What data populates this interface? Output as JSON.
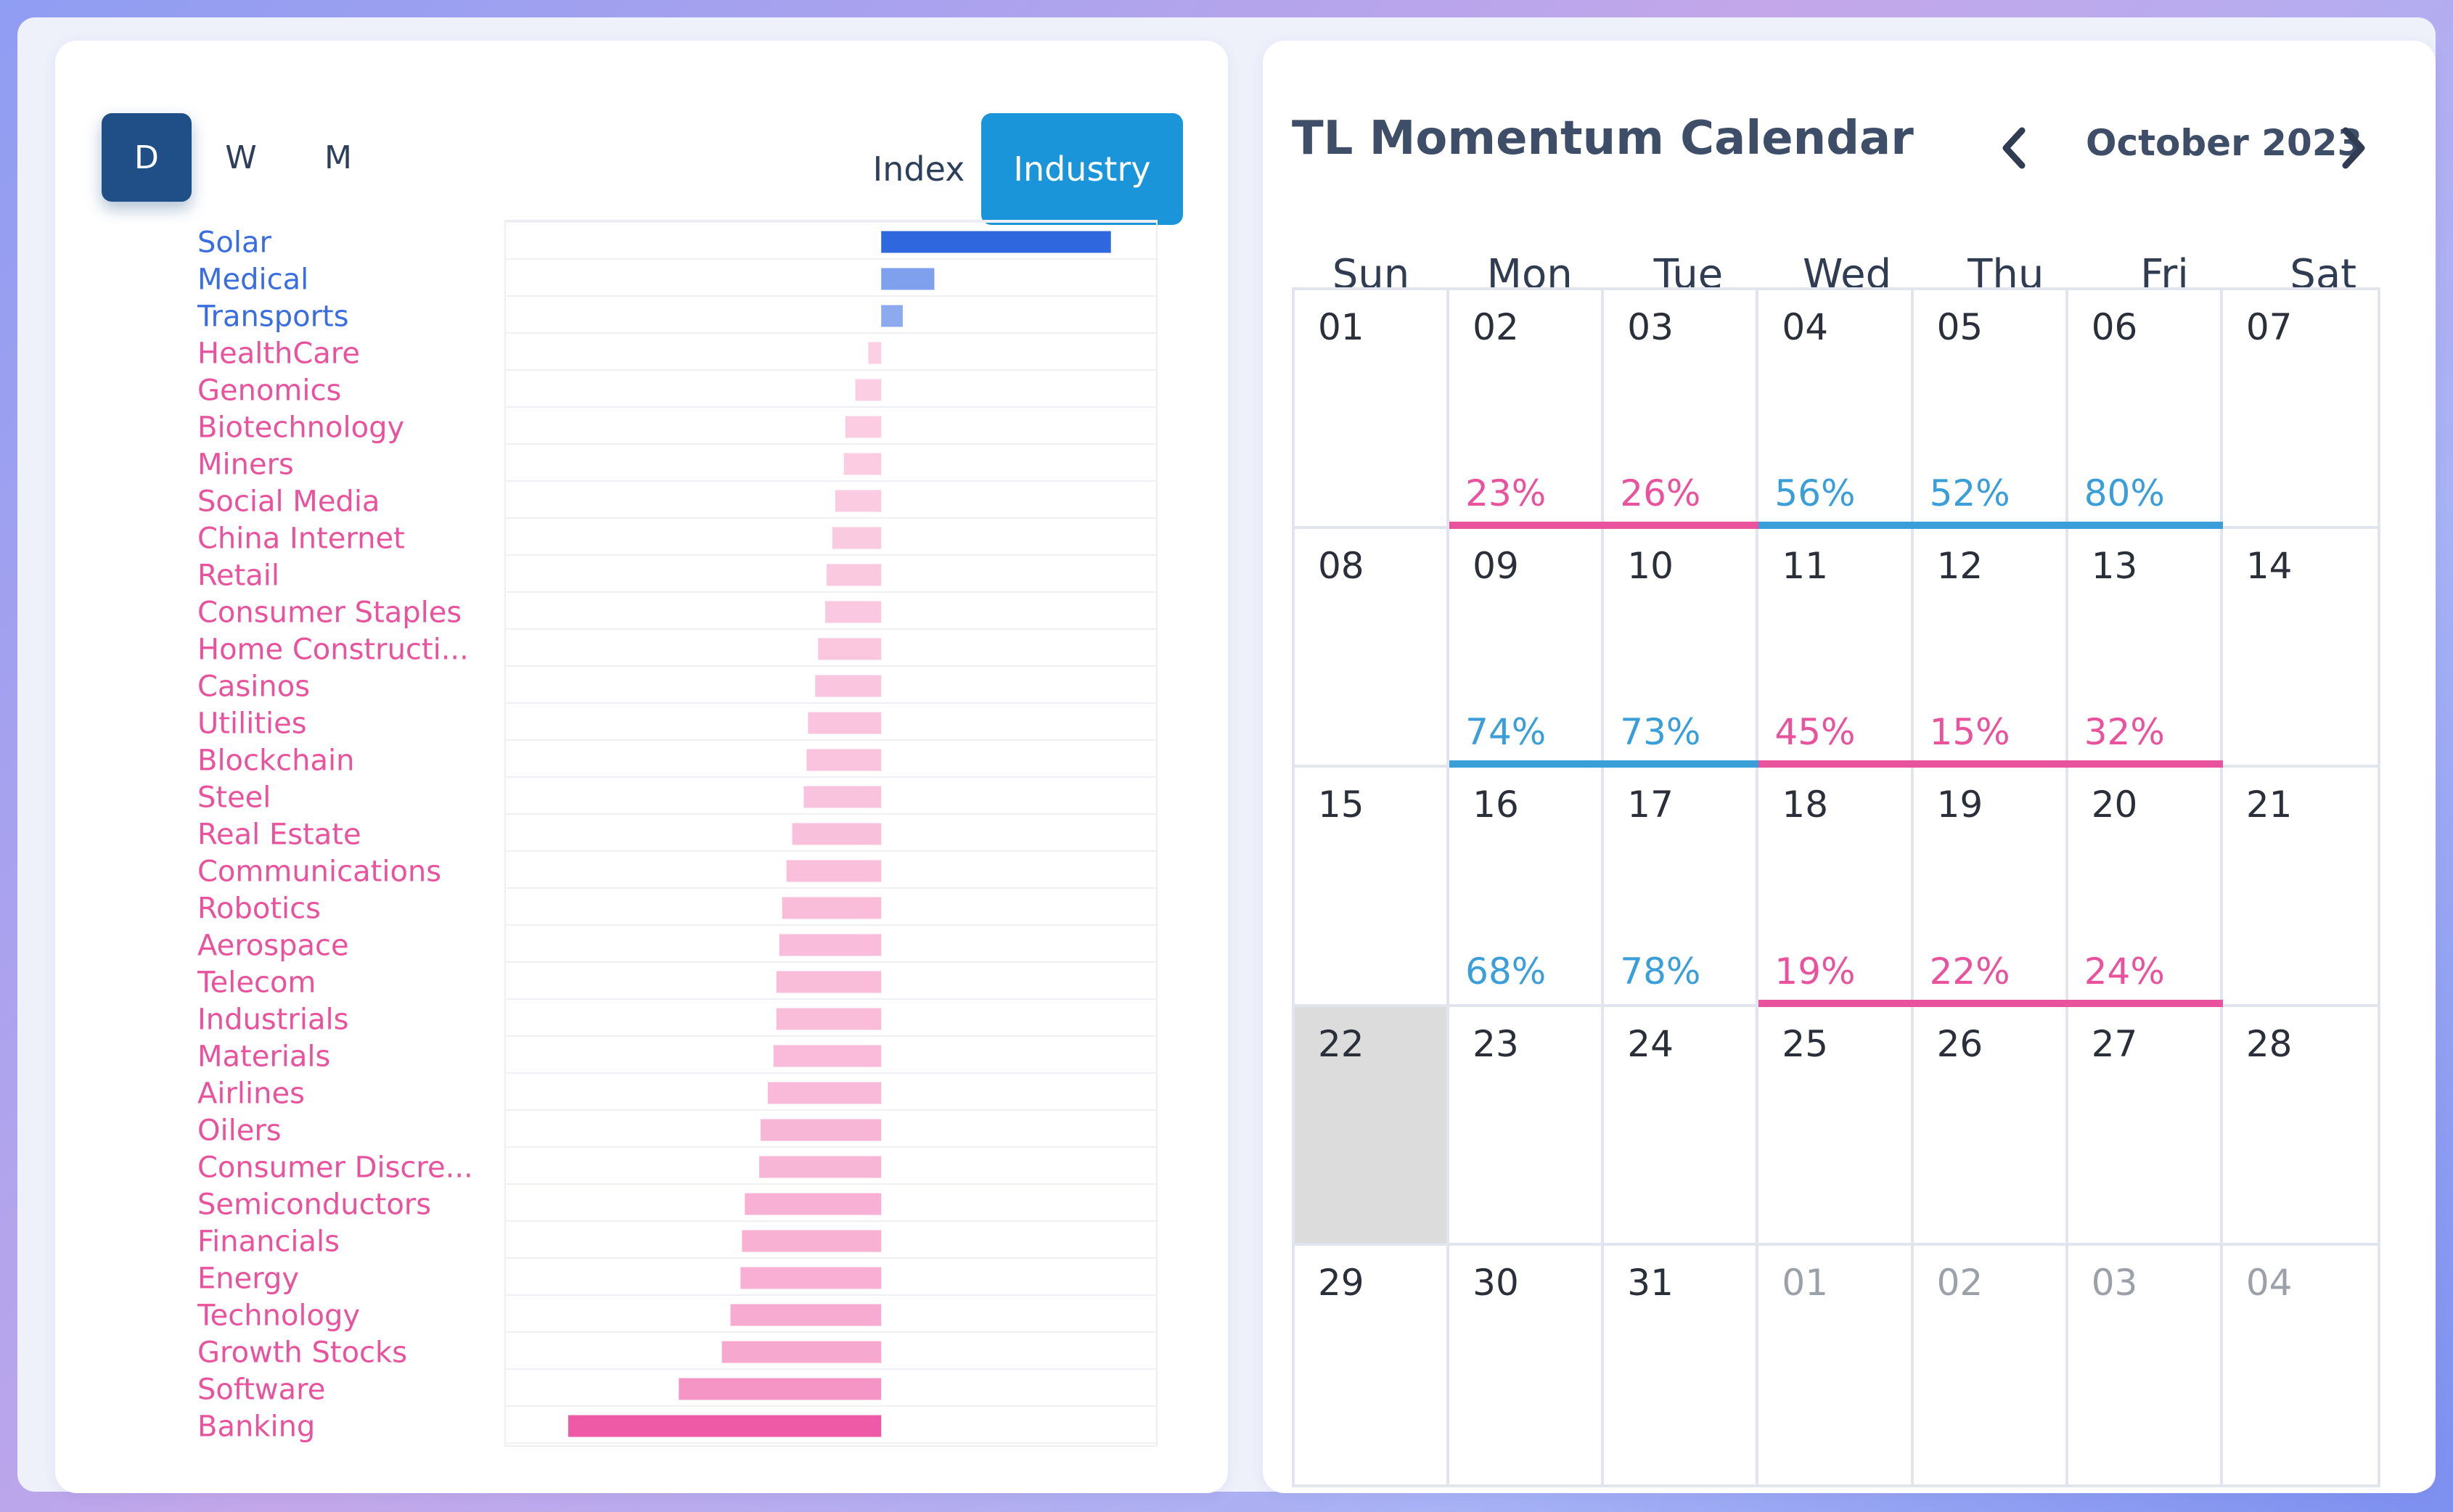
{
  "colors": {
    "positive_strong": "#2f67df",
    "positive_light": "#97b1f0",
    "negative_strong": "#ef5aa6",
    "negative_light": "#fbd0e4",
    "label_positive": "#3a6ee0",
    "label_negative": "#e9539d",
    "pct_blue": "#3a9fd9",
    "pct_pink": "#e9539d"
  },
  "period_tabs": [
    {
      "label": "D",
      "active": true
    },
    {
      "label": "W",
      "active": false
    },
    {
      "label": "M",
      "active": false
    }
  ],
  "mode_tabs": [
    {
      "label": "Index",
      "active": false
    },
    {
      "label": "Industry",
      "active": true
    }
  ],
  "chart_data": {
    "type": "bar",
    "orientation": "horizontal",
    "categories": [
      "Solar",
      "Medical",
      "Transports",
      "HealthCare",
      "Genomics",
      "Biotechnology",
      "Miners",
      "Social Media",
      "China Internet",
      "Retail",
      "Consumer Staples",
      "Home Constructi...",
      "Casinos",
      "Utilities",
      "Blockchain",
      "Steel",
      "Real Estate",
      "Communications",
      "Robotics",
      "Aerospace",
      "Telecom",
      "Industrials",
      "Materials",
      "Airlines",
      "Oilers",
      "Consumer Discre...",
      "Semiconductors",
      "Financials",
      "Energy",
      "Technology",
      "Growth Stocks",
      "Software",
      "Banking"
    ],
    "values": [
      1.6,
      0.37,
      0.15,
      -0.09,
      -0.18,
      -0.25,
      -0.26,
      -0.32,
      -0.34,
      -0.38,
      -0.39,
      -0.44,
      -0.46,
      -0.51,
      -0.52,
      -0.54,
      -0.62,
      -0.66,
      -0.69,
      -0.71,
      -0.73,
      -0.73,
      -0.75,
      -0.79,
      -0.84,
      -0.85,
      -0.95,
      -0.97,
      -0.98,
      -1.05,
      -1.11,
      -1.41,
      -2.18
    ],
    "xlim": [
      -2.62,
      1.92
    ],
    "grid": true,
    "legend": "none"
  },
  "calendar": {
    "title": "TL Momentum Calendar",
    "month": "October 2023",
    "days_of_week": [
      "Sun",
      "Mon",
      "Tue",
      "Wed",
      "Thu",
      "Fri",
      "Sat"
    ],
    "weeks": [
      [
        {
          "d": "01"
        },
        {
          "d": "02",
          "p": "23%",
          "c": "pink"
        },
        {
          "d": "03",
          "p": "26%",
          "c": "pink"
        },
        {
          "d": "04",
          "p": "56%",
          "c": "blue"
        },
        {
          "d": "05",
          "p": "52%",
          "c": "blue"
        },
        {
          "d": "06",
          "p": "80%",
          "c": "blue"
        },
        {
          "d": "07"
        }
      ],
      [
        {
          "d": "08"
        },
        {
          "d": "09",
          "p": "74%",
          "c": "blue"
        },
        {
          "d": "10",
          "p": "73%",
          "c": "blue"
        },
        {
          "d": "11",
          "p": "45%",
          "c": "pink"
        },
        {
          "d": "12",
          "p": "15%",
          "c": "pink"
        },
        {
          "d": "13",
          "p": "32%",
          "c": "pink"
        },
        {
          "d": "14"
        }
      ],
      [
        {
          "d": "15"
        },
        {
          "d": "16",
          "p": "68%",
          "c": "blue-nobar"
        },
        {
          "d": "17",
          "p": "78%",
          "c": "blue-nobar"
        },
        {
          "d": "18",
          "p": "19%",
          "c": "pink"
        },
        {
          "d": "19",
          "p": "22%",
          "c": "pink"
        },
        {
          "d": "20",
          "p": "24%",
          "c": "pink"
        },
        {
          "d": "21"
        }
      ],
      [
        {
          "d": "22",
          "today": true
        },
        {
          "d": "23"
        },
        {
          "d": "24"
        },
        {
          "d": "25"
        },
        {
          "d": "26"
        },
        {
          "d": "27"
        },
        {
          "d": "28"
        }
      ],
      [
        {
          "d": "29"
        },
        {
          "d": "30"
        },
        {
          "d": "31"
        },
        {
          "d": "01",
          "other": true
        },
        {
          "d": "02",
          "other": true
        },
        {
          "d": "03",
          "other": true
        },
        {
          "d": "04",
          "other": true
        }
      ]
    ]
  }
}
